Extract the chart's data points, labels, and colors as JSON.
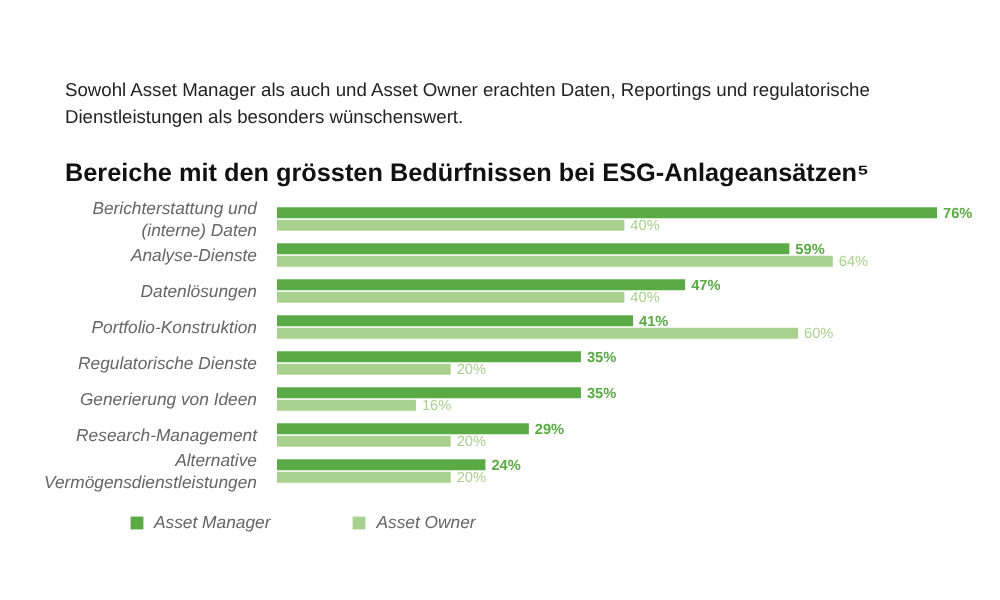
{
  "chart_data": {
    "type": "bar",
    "orientation": "horizontal",
    "title": "Bereiche mit den grössten Bedürfnissen bei ESG-Anlageansätzen⁵",
    "annotations": [
      "Sowohl Asset Manager als auch und Asset Owner erachten Daten, Reportings und regulatorische\nDienstleistungen als besonders wünschenswert."
    ],
    "categories": [
      "Berichterstattung und\n(interne) Daten",
      "Analyse-Dienste",
      "Datenlösungen",
      "Portfolio-Konstruktion",
      "Regulatorische Dienste",
      "Generierung von Ideen",
      "Research-Management",
      "Alternative\nVermögensdienstleistungen"
    ],
    "series": [
      {
        "name": "Asset Manager",
        "color": "#5aaa46",
        "values": [
          76,
          59,
          47,
          41,
          35,
          35,
          29,
          24
        ],
        "value_labels": [
          "76%",
          "59%",
          "47%",
          "41%",
          "35%",
          "35%",
          "29%",
          "24%"
        ]
      },
      {
        "name": "Asset Owner",
        "color": "#a9d18e",
        "values": [
          40,
          64,
          40,
          60,
          20,
          16,
          20,
          20
        ],
        "value_labels": [
          "40%",
          "64%",
          "40%",
          "60%",
          "20%",
          "16%",
          "20%",
          "20%"
        ]
      }
    ],
    "grid": false,
    "legend": "bottom left"
  }
}
